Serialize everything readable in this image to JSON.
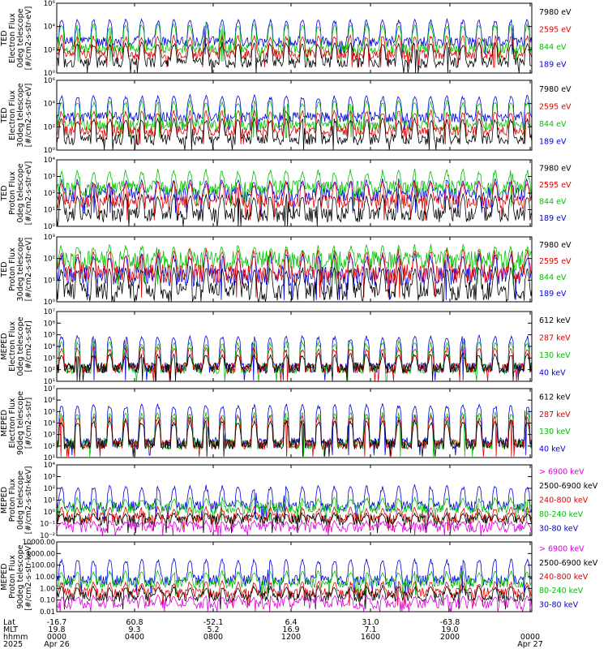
{
  "chart_data": [
    {
      "type": "line",
      "ylabel_lines": [
        "TED",
        "Electron Flux",
        "0deg telescope",
        "[#/cm2-s-str-eV]"
      ],
      "yscale": "log",
      "ylim": [
        1,
        1000000
      ],
      "yticks": [
        {
          "value": 1,
          "label": "10⁰"
        },
        {
          "value": 100,
          "label": "10²"
        },
        {
          "value": 10000,
          "label": "10⁴"
        },
        {
          "value": 1000000,
          "label": "10⁶"
        }
      ],
      "legend": [
        {
          "name": "7980 eV",
          "color": "#000000"
        },
        {
          "name": "2595 eV",
          "color": "#e00000"
        },
        {
          "name": "844 eV",
          "color": "#00c000"
        },
        {
          "name": "189 eV",
          "color": "#0000e0"
        }
      ],
      "series": [
        {
          "color": "#0000e0",
          "base": 500,
          "spike": 50000
        },
        {
          "color": "#00c000",
          "base": 120,
          "spike": 20000
        },
        {
          "color": "#e00000",
          "base": 40,
          "spike": 2000
        },
        {
          "color": "#000000",
          "base": 8,
          "spike": 500
        }
      ]
    },
    {
      "type": "line",
      "ylabel_lines": [
        "TED",
        "Electron Flux",
        "30deg telescope",
        "[#/cm2-s-str-eV]"
      ],
      "yscale": "log",
      "ylim": [
        1,
        1000000
      ],
      "yticks": [
        {
          "value": 1,
          "label": "10⁰"
        },
        {
          "value": 100,
          "label": "10²"
        },
        {
          "value": 10000,
          "label": "10⁴"
        },
        {
          "value": 1000000,
          "label": "10⁶"
        }
      ],
      "legend": [
        {
          "name": "7980 eV",
          "color": "#000000"
        },
        {
          "name": "2595 eV",
          "color": "#e00000"
        },
        {
          "name": "844 eV",
          "color": "#00c000"
        },
        {
          "name": "189 eV",
          "color": "#0000e0"
        }
      ],
      "series": [
        {
          "color": "#0000e0",
          "base": 700,
          "spike": 60000
        },
        {
          "color": "#00c000",
          "base": 150,
          "spike": 20000
        },
        {
          "color": "#e00000",
          "base": 40,
          "spike": 3000
        },
        {
          "color": "#000000",
          "base": 8,
          "spike": 600
        }
      ]
    },
    {
      "type": "line",
      "ylabel_lines": [
        "TED",
        "Proton Flux",
        "0deg telescope",
        "[#/cm2-s-str-eV]"
      ],
      "yscale": "log",
      "ylim": [
        1,
        10000
      ],
      "yticks": [
        {
          "value": 1,
          "label": "10⁰"
        },
        {
          "value": 10,
          "label": "10¹"
        },
        {
          "value": 100,
          "label": "10²"
        },
        {
          "value": 1000,
          "label": "10³"
        },
        {
          "value": 10000,
          "label": "10⁴"
        }
      ],
      "legend": [
        {
          "name": "7980 eV",
          "color": "#000000"
        },
        {
          "name": "2595 eV",
          "color": "#e00000"
        },
        {
          "name": "844 eV",
          "color": "#00c000"
        },
        {
          "name": "189 eV",
          "color": "#0000e0"
        }
      ],
      "series": [
        {
          "color": "#0000e0",
          "base": 80,
          "spike": 800
        },
        {
          "color": "#00c000",
          "base": 200,
          "spike": 3000
        },
        {
          "color": "#e00000",
          "base": 30,
          "spike": 600
        },
        {
          "color": "#000000",
          "base": 5,
          "spike": 100
        }
      ]
    },
    {
      "type": "line",
      "ylabel_lines": [
        "TED",
        "Proton Flux",
        "30deg telescope",
        "[#/cm2-s-str-eV]"
      ],
      "yscale": "log",
      "ylim": [
        1,
        1000
      ],
      "yticks": [
        {
          "value": 1,
          "label": "10⁰"
        },
        {
          "value": 10,
          "label": "10¹"
        },
        {
          "value": 100,
          "label": "10²"
        },
        {
          "value": 1000,
          "label": "10³"
        }
      ],
      "legend": [
        {
          "name": "7980 eV",
          "color": "#000000"
        },
        {
          "name": "2595 eV",
          "color": "#e00000"
        },
        {
          "name": "844 eV",
          "color": "#00c000"
        },
        {
          "name": "189 eV",
          "color": "#0000e0"
        }
      ],
      "series": [
        {
          "color": "#00c000",
          "base": 80,
          "spike": 500
        },
        {
          "color": "#0000e0",
          "base": 15,
          "spike": 200
        },
        {
          "color": "#e00000",
          "base": 20,
          "spike": 300
        },
        {
          "color": "#000000",
          "base": 3,
          "spike": 50
        }
      ]
    },
    {
      "type": "line",
      "ylabel_lines": [
        "MEPED",
        "Electron Flux",
        "0deg telescope",
        "[#/cm2-s-str]"
      ],
      "yscale": "log",
      "ylim": [
        10,
        10000000
      ],
      "yticks": [
        {
          "value": 10,
          "label": "10¹"
        },
        {
          "value": 100,
          "label": "10²"
        },
        {
          "value": 1000,
          "label": "10³"
        },
        {
          "value": 10000,
          "label": "10⁴"
        },
        {
          "value": 100000,
          "label": "10⁵"
        },
        {
          "value": 1000000,
          "label": "10⁶"
        },
        {
          "value": 10000000,
          "label": "10⁷"
        }
      ],
      "legend": [
        {
          "name": "612 keV",
          "color": "#000000"
        },
        {
          "name": "287 keV",
          "color": "#e00000"
        },
        {
          "name": "130 keV",
          "color": "#00c000"
        },
        {
          "name": "40 keV",
          "color": "#0000e0"
        }
      ],
      "series": [
        {
          "color": "#0000e0",
          "base": 150,
          "spike": 100000
        },
        {
          "color": "#00c000",
          "base": 120,
          "spike": 30000
        },
        {
          "color": "#e00000",
          "base": 130,
          "spike": 10000
        },
        {
          "color": "#000000",
          "base": 140,
          "spike": 3000
        }
      ]
    },
    {
      "type": "line",
      "ylabel_lines": [
        "MEPED",
        "Electron Flux",
        "90deg telescope",
        "[#/cm2-s-str]"
      ],
      "yscale": "log",
      "ylim": [
        10,
        10000000
      ],
      "yticks": [
        {
          "value": 10,
          "label": "10¹"
        },
        {
          "value": 100,
          "label": "10²"
        },
        {
          "value": 1000,
          "label": "10³"
        },
        {
          "value": 10000,
          "label": "10⁴"
        },
        {
          "value": 100000,
          "label": "10⁵"
        },
        {
          "value": 1000000,
          "label": "10⁶"
        },
        {
          "value": 10000000,
          "label": "10⁷"
        }
      ],
      "legend": [
        {
          "name": "612 keV",
          "color": "#000000"
        },
        {
          "name": "287 keV",
          "color": "#e00000"
        },
        {
          "name": "130 keV",
          "color": "#00c000"
        },
        {
          "name": "40 keV",
          "color": "#0000e0"
        }
      ],
      "series": [
        {
          "color": "#0000e0",
          "base": 200,
          "spike": 500000
        },
        {
          "color": "#00c000",
          "base": 150,
          "spike": 100000
        },
        {
          "color": "#e00000",
          "base": 150,
          "spike": 50000
        },
        {
          "color": "#000000",
          "base": 150,
          "spike": 20000
        }
      ]
    },
    {
      "type": "line",
      "ylabel_lines": [
        "MEPED",
        "Proton Flux",
        "0deg telescope",
        "[#/cm2-s-str-keV]"
      ],
      "yscale": "log",
      "ylim": [
        0.01,
        10000
      ],
      "yticks": [
        {
          "value": 0.01,
          "label": "10⁻²"
        },
        {
          "value": 0.1,
          "label": "10⁻¹"
        },
        {
          "value": 1,
          "label": "10⁰"
        },
        {
          "value": 10,
          "label": "10¹"
        },
        {
          "value": 100,
          "label": "10²"
        },
        {
          "value": 1000,
          "label": "10³"
        },
        {
          "value": 10000,
          "label": "10⁴"
        }
      ],
      "legend": [
        {
          "name": "> 6900 keV",
          "color": "#e000e0"
        },
        {
          "name": "2500-6900 keV",
          "color": "#000000"
        },
        {
          "name": "240-800 keV",
          "color": "#e00000"
        },
        {
          "name": "80-240 keV",
          "color": "#00c000"
        },
        {
          "name": "30-80 keV",
          "color": "#0000e0"
        }
      ],
      "series": [
        {
          "color": "#0000e0",
          "base": 3,
          "spike": 200
        },
        {
          "color": "#00c000",
          "base": 2,
          "spike": 20
        },
        {
          "color": "#e00000",
          "base": 0.3,
          "spike": 3
        },
        {
          "color": "#000000",
          "base": 0.2,
          "spike": 1
        },
        {
          "color": "#e000e0",
          "base": 0.05,
          "spike": 0.2
        }
      ]
    },
    {
      "type": "line",
      "ylabel_lines": [
        "MEPED",
        "Proton Flux",
        "90deg telescope",
        "[#/cm2-s-str-keV]"
      ],
      "yscale": "log",
      "ylim": [
        0.01,
        10000
      ],
      "yticks": [
        {
          "value": 0.01,
          "label": "0.01"
        },
        {
          "value": 0.1,
          "label": "0.10"
        },
        {
          "value": 1,
          "label": "1.00"
        },
        {
          "value": 10,
          "label": "10.00"
        },
        {
          "value": 100,
          "label": "100.00"
        },
        {
          "value": 1000,
          "label": "1000.00"
        },
        {
          "value": 10000,
          "label": "10000.00"
        }
      ],
      "legend": [
        {
          "name": "> 6900 keV",
          "color": "#e000e0"
        },
        {
          "name": "2500-6900 keV",
          "color": "#000000"
        },
        {
          "name": "240-800 keV",
          "color": "#e00000"
        },
        {
          "name": "80-240 keV",
          "color": "#00c000"
        },
        {
          "name": "30-80 keV",
          "color": "#0000e0"
        }
      ],
      "series": [
        {
          "color": "#0000e0",
          "base": 5,
          "spike": 400
        },
        {
          "color": "#00c000",
          "base": 3,
          "spike": 40
        },
        {
          "color": "#e00000",
          "base": 0.4,
          "spike": 5
        },
        {
          "color": "#000000",
          "base": 0.2,
          "spike": 2
        },
        {
          "color": "#e000e0",
          "base": 0.05,
          "spike": 0.3
        }
      ]
    }
  ],
  "x_axis": {
    "row_labels": [
      "Lat",
      "MLT",
      "hhmm",
      "2025"
    ],
    "columns": [
      {
        "lat": "-16.7",
        "mlt": "19.8",
        "hhmm": "0000",
        "date": "Apr 26"
      },
      {
        "lat": "60.8",
        "mlt": "9.3",
        "hhmm": "0400",
        "date": ""
      },
      {
        "lat": "-52.1",
        "mlt": "5.2",
        "hhmm": "0800",
        "date": ""
      },
      {
        "lat": "6.4",
        "mlt": "16.9",
        "hhmm": "1200",
        "date": ""
      },
      {
        "lat": "31.0",
        "mlt": "7.1",
        "hhmm": "1600",
        "date": ""
      },
      {
        "lat": "-63.8",
        "mlt": "19.0",
        "hhmm": "2000",
        "date": ""
      },
      {
        "lat": "",
        "mlt": "",
        "hhmm": "0000",
        "date": "Apr 27"
      }
    ]
  }
}
